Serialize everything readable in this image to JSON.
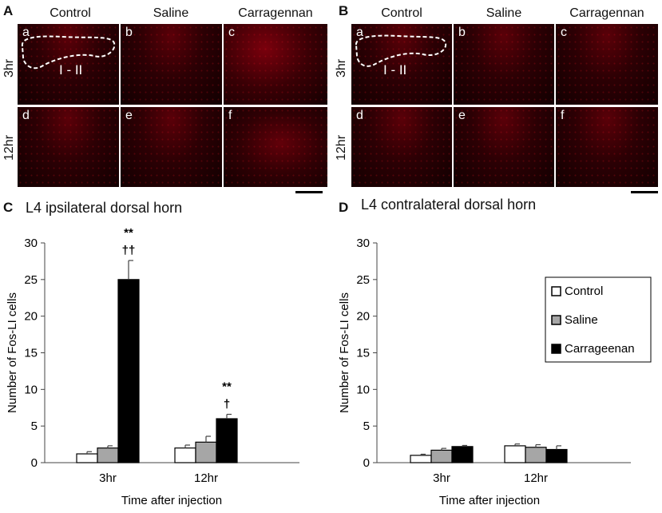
{
  "panels": {
    "A": {
      "letter": "A",
      "columns": [
        "Control",
        "Saline",
        "Carragennan"
      ],
      "rows": [
        "3hr",
        "12hr"
      ],
      "images": [
        "a",
        "b",
        "c",
        "d",
        "e",
        "f"
      ],
      "region_label": "I - II"
    },
    "B": {
      "letter": "B",
      "columns": [
        "Control",
        "Saline",
        "Carragennan"
      ],
      "rows": [
        "3hr",
        "12hr"
      ],
      "images": [
        "a",
        "b",
        "c",
        "d",
        "e",
        "f"
      ],
      "region_label": "I - II"
    }
  },
  "chart_data": [
    {
      "type": "bar",
      "panel": "C",
      "title": "L4 ipsilateral dorsal horn",
      "xlabel": "Time after injection",
      "ylabel": "Number of Fos-LI cells",
      "categories": [
        "3hr",
        "12hr"
      ],
      "ylim": [
        0,
        30
      ],
      "yticks": [
        "0",
        "5",
        "10",
        "15",
        "20",
        "25",
        "30"
      ],
      "series": [
        {
          "name": "Control",
          "values": [
            1.2,
            2.0
          ],
          "errors": [
            0.3,
            0.4
          ],
          "color": "#ffffff"
        },
        {
          "name": "Saline",
          "values": [
            2.0,
            2.8
          ],
          "errors": [
            0.3,
            0.8
          ],
          "color": "#a6a6a6"
        },
        {
          "name": "Carrageenan",
          "values": [
            25.0,
            6.0
          ],
          "errors": [
            2.6,
            0.6
          ],
          "color": "#000000"
        }
      ],
      "annotations": [
        {
          "category": "3hr",
          "series": "Carrageenan",
          "lines": [
            "**",
            "††"
          ]
        },
        {
          "category": "12hr",
          "series": "Carrageenan",
          "lines": [
            "**",
            "†"
          ]
        }
      ]
    },
    {
      "type": "bar",
      "panel": "D",
      "title": "L4 contralateral dorsal horn",
      "xlabel": "Time after injection",
      "ylabel": "Number of Fos-LI cells",
      "categories": [
        "3hr",
        "12hr"
      ],
      "ylim": [
        0,
        30
      ],
      "yticks": [
        "0",
        "5",
        "10",
        "15",
        "20",
        "25",
        "30"
      ],
      "legend_position": "right",
      "series": [
        {
          "name": "Control",
          "values": [
            1.0,
            2.3
          ],
          "errors": [
            0.15,
            0.25
          ],
          "color": "#ffffff"
        },
        {
          "name": "Saline",
          "values": [
            1.7,
            2.1
          ],
          "errors": [
            0.25,
            0.35
          ],
          "color": "#a6a6a6"
        },
        {
          "name": "Carrageenan",
          "values": [
            2.2,
            1.8
          ],
          "errors": [
            0.15,
            0.5
          ],
          "color": "#000000"
        }
      ]
    }
  ],
  "labels": {
    "C": "C",
    "D": "D"
  }
}
